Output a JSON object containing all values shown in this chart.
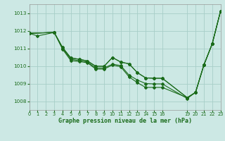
{
  "background_color": "#cce8e4",
  "line_color": "#1a6b1a",
  "grid_color": "#a8cec8",
  "title": "Graphe pression niveau de la mer (hPa)",
  "xlim": [
    0,
    23
  ],
  "ylim": [
    1007.5,
    1013.5
  ],
  "yticks": [
    1008,
    1009,
    1010,
    1011,
    1012,
    1013
  ],
  "xtick_positions": [
    0,
    1,
    2,
    3,
    4,
    5,
    6,
    7,
    8,
    9,
    10,
    11,
    12,
    13,
    14,
    15,
    16,
    19,
    20,
    21,
    22,
    23
  ],
  "xtick_labels": [
    "0",
    "1",
    "2",
    "3",
    "4",
    "5",
    "6",
    "7",
    "8",
    "9",
    "10",
    "11",
    "12",
    "13",
    "14",
    "15",
    "16",
    "19",
    "20",
    "21",
    "22",
    "23"
  ],
  "lines": [
    {
      "x": [
        0,
        1,
        3,
        4,
        5,
        6,
        7,
        8,
        9,
        10,
        11,
        12,
        13,
        14,
        15,
        16,
        19,
        20,
        21,
        22,
        23
      ],
      "y": [
        1011.85,
        1011.7,
        1011.9,
        1011.05,
        1010.45,
        1010.38,
        1010.28,
        1009.98,
        1009.98,
        1010.48,
        1010.22,
        1010.12,
        1009.62,
        1009.32,
        1009.3,
        1009.3,
        1008.2,
        1008.5,
        1010.05,
        1011.25,
        1013.1
      ]
    },
    {
      "x": [
        0,
        3,
        4,
        5,
        6,
        7,
        8,
        9,
        10,
        11,
        12,
        13,
        14,
        15,
        16,
        19,
        20,
        21,
        22,
        23
      ],
      "y": [
        1011.85,
        1011.9,
        1011.05,
        1010.45,
        1010.38,
        1010.28,
        1009.98,
        1009.98,
        1010.48,
        1010.22,
        1010.12,
        1009.62,
        1009.32,
        1009.3,
        1009.3,
        1008.2,
        1008.5,
        1010.05,
        1011.25,
        1013.1
      ]
    },
    {
      "x": [
        0,
        3,
        4,
        5,
        6,
        7,
        8,
        9,
        10,
        11,
        12,
        13,
        14,
        15,
        16,
        19,
        20,
        21,
        22,
        23
      ],
      "y": [
        1011.85,
        1011.9,
        1011.0,
        1010.38,
        1010.3,
        1010.22,
        1009.88,
        1009.88,
        1010.1,
        1010.02,
        1009.48,
        1009.2,
        1009.0,
        1008.98,
        1008.98,
        1008.15,
        1008.5,
        1010.05,
        1011.25,
        1013.1
      ]
    },
    {
      "x": [
        0,
        3,
        4,
        5,
        6,
        7,
        8,
        9,
        10,
        11,
        12,
        13,
        14,
        15,
        16,
        19,
        20,
        21,
        22,
        23
      ],
      "y": [
        1011.85,
        1011.9,
        1010.95,
        1010.3,
        1010.25,
        1010.18,
        1009.82,
        1009.82,
        1010.05,
        1009.95,
        1009.38,
        1009.05,
        1008.78,
        1008.78,
        1008.78,
        1008.2,
        1008.5,
        1010.05,
        1011.25,
        1013.1
      ]
    }
  ]
}
